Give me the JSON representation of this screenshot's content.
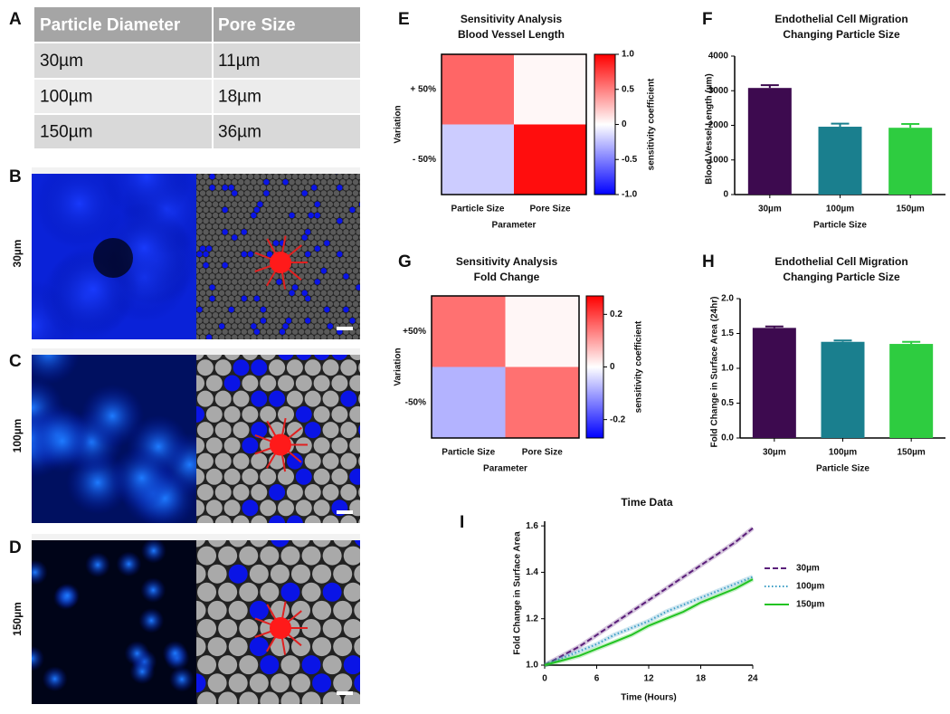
{
  "panel_labels": [
    "A",
    "B",
    "C",
    "D",
    "E",
    "F",
    "G",
    "H",
    "I"
  ],
  "table": {
    "header": [
      "Particle Diameter",
      "Pore Size"
    ],
    "rows": [
      [
        "30µm",
        "11µm"
      ],
      [
        "100µm",
        "18µm"
      ],
      [
        "150µm",
        "36µm"
      ]
    ]
  },
  "image_rows": [
    "30µm",
    "100µm",
    "150µm"
  ],
  "chart_data": [
    {
      "type": "heatmap",
      "title": "Sensitivity Analysis",
      "subtitle": "Blood Vessel Length",
      "x_categories": [
        "Particle Size",
        "Pore Size"
      ],
      "y_categories": [
        "+ 50%",
        "- 50%"
      ],
      "xlabel": "Parameter",
      "ylabel": "Variation",
      "values": [
        [
          0.6,
          0.03
        ],
        [
          -0.2,
          0.95
        ]
      ],
      "clim": [
        -1,
        1
      ],
      "colors": [
        "#0000ff",
        "#ffffff",
        "#ff0000"
      ],
      "cticks": [
        {
          "value": 1,
          "label": "1.0"
        },
        0.5,
        0,
        -0.5,
        {
          "value": -1,
          "label": "-1.0"
        }
      ],
      "colorbar_label": "sensitivity coefficient"
    },
    {
      "type": "bar",
      "title": "Endothelial Cell Migration",
      "subtitle": "Changing Particle Size",
      "categories": [
        "30µm",
        "100µm",
        "150µm"
      ],
      "values": [
        3080,
        1960,
        1930
      ],
      "errors": [
        80,
        90,
        110
      ],
      "colors": [
        "#3d0a4f",
        "#1a7f8e",
        "#2ecc40"
      ],
      "ylim": [
        0,
        4000
      ],
      "yticks": [
        0,
        1000,
        2000,
        3000,
        4000
      ],
      "xlabel": "Particle Size",
      "ylabel": "Blood Vessel Length (µm)"
    },
    {
      "type": "heatmap",
      "title": "Sensitivity Analysis",
      "subtitle": "Fold Change",
      "x_categories": [
        "Particle Size",
        "Pore Size"
      ],
      "y_categories": [
        "+50%",
        "-50%"
      ],
      "xlabel": "Parameter",
      "ylabel": "Variation",
      "values": [
        [
          0.15,
          0.01
        ],
        [
          -0.08,
          0.15
        ]
      ],
      "clim": [
        -0.27,
        0.27
      ],
      "colors": [
        "#0000ff",
        "#ffffff",
        "#ff0000"
      ],
      "cticks": [
        0.2,
        0,
        -0.2
      ],
      "colorbar_label": "sensitivity coefficient"
    },
    {
      "type": "bar",
      "title": "Endothelial Cell Migration",
      "subtitle": "Changing Particle Size",
      "categories": [
        "30µm",
        "100µm",
        "150µm"
      ],
      "values": [
        1.58,
        1.38,
        1.35
      ],
      "errors": [
        0.02,
        0.02,
        0.03
      ],
      "colors": [
        "#3d0a4f",
        "#1a7f8e",
        "#2ecc40"
      ],
      "ylim": [
        0,
        2
      ],
      "yticks": [
        {
          "value": 0,
          "label": "0.0"
        },
        0.5,
        {
          "value": 1,
          "label": "1.0"
        },
        1.5,
        {
          "value": 2,
          "label": "2.0"
        }
      ],
      "xlabel": "Particle Size",
      "ylabel": "Fold Change in Surface Area  (24hr)"
    },
    {
      "type": "line",
      "title": "Time Data",
      "x": [
        0,
        2,
        4,
        6,
        8,
        10,
        12,
        14,
        16,
        18,
        20,
        22,
        24
      ],
      "series": [
        {
          "name": "30µm",
          "color": "#5b1f7a",
          "dash": "dashed",
          "values": [
            1.0,
            1.04,
            1.08,
            1.13,
            1.18,
            1.23,
            1.28,
            1.33,
            1.38,
            1.43,
            1.48,
            1.53,
            1.59
          ]
        },
        {
          "name": "100µm",
          "color": "#3a9cc4",
          "dash": "dotted",
          "values": [
            1.0,
            1.03,
            1.06,
            1.09,
            1.13,
            1.16,
            1.19,
            1.23,
            1.26,
            1.29,
            1.32,
            1.35,
            1.38
          ]
        },
        {
          "name": "150µm",
          "color": "#22c322",
          "dash": "solid",
          "values": [
            1.0,
            1.02,
            1.04,
            1.07,
            1.1,
            1.13,
            1.17,
            1.2,
            1.23,
            1.27,
            1.3,
            1.33,
            1.37
          ]
        }
      ],
      "xlim": [
        0,
        24
      ],
      "xticks": [
        0,
        6,
        12,
        18,
        24
      ],
      "ylim": [
        1,
        1.62
      ],
      "yticks": [
        {
          "value": 1,
          "label": "1.0"
        },
        {
          "value": 1.2,
          "label": "1.2"
        },
        {
          "value": 1.4,
          "label": "1.4"
        },
        {
          "value": 1.6,
          "label": "1.6"
        }
      ],
      "xlabel": "Time (Hours)",
      "ylabel": "Fold Change in Surface Area"
    }
  ]
}
